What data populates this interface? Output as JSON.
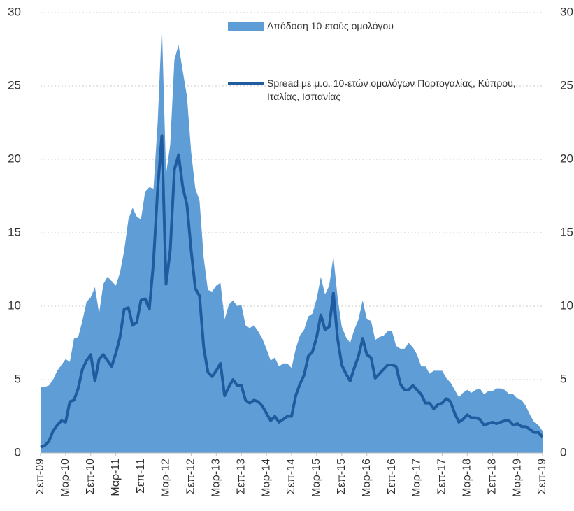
{
  "chart_data": {
    "type": "area-line",
    "categories": [
      "Σεπ-09",
      null,
      null,
      null,
      null,
      null,
      "Μαρ-10",
      null,
      null,
      null,
      null,
      null,
      "Σεπ-10",
      null,
      null,
      null,
      null,
      null,
      "Μαρ-11",
      null,
      null,
      null,
      null,
      null,
      "Σεπ-11",
      null,
      null,
      null,
      null,
      null,
      "Μαρ-12",
      null,
      null,
      null,
      null,
      null,
      "Σεπ-12",
      null,
      null,
      null,
      null,
      null,
      "Μαρ-13",
      null,
      null,
      null,
      null,
      null,
      "Σεπ-13",
      null,
      null,
      null,
      null,
      null,
      "Μαρ-14",
      null,
      null,
      null,
      null,
      null,
      "Σεπ-14",
      null,
      null,
      null,
      null,
      null,
      "Μαρ-15",
      null,
      null,
      null,
      null,
      null,
      "Σεπ-15",
      null,
      null,
      null,
      null,
      null,
      "Μαρ-16",
      null,
      null,
      null,
      null,
      null,
      "Σεπ-16",
      null,
      null,
      null,
      null,
      null,
      "Μαρ-17",
      null,
      null,
      null,
      null,
      null,
      "Σεπ-17",
      null,
      null,
      null,
      null,
      null,
      "Μαρ-18",
      null,
      null,
      null,
      null,
      null,
      "Σεπ-18",
      null,
      null,
      null,
      null,
      null,
      "Μαρ-19",
      null,
      null,
      null,
      null,
      null,
      "Σεπ-19"
    ],
    "series": [
      {
        "name": "Απόδοση 10-ετούς ομολόγου",
        "kind": "area",
        "color": "#5f9dd6",
        "values": [
          4.5,
          4.5,
          4.6,
          5.0,
          5.6,
          6.0,
          6.4,
          6.2,
          7.8,
          7.9,
          9.0,
          10.3,
          10.6,
          11.3,
          9.5,
          11.5,
          12.0,
          11.7,
          11.4,
          12.3,
          13.8,
          15.9,
          16.7,
          16.1,
          15.9,
          17.8,
          18.1,
          18.0,
          22.5,
          29.2,
          19.0,
          21.0,
          26.8,
          27.8,
          26.0,
          24.3,
          20.5,
          18.0,
          17.2,
          13.3,
          11.1,
          11.0,
          11.4,
          11.6,
          9.1,
          10.1,
          10.4,
          10.0,
          10.1,
          8.7,
          8.5,
          8.7,
          8.3,
          7.8,
          7.1,
          6.3,
          6.5,
          5.9,
          6.1,
          6.1,
          5.8,
          7.1,
          8.0,
          8.4,
          9.3,
          9.5,
          10.5,
          12.0,
          10.8,
          11.4,
          13.4,
          10.6,
          8.6,
          7.9,
          7.5,
          8.4,
          9.1,
          10.4,
          9.1,
          9.0,
          7.7,
          7.9,
          8.0,
          8.3,
          8.3,
          7.3,
          7.1,
          7.1,
          7.5,
          7.2,
          6.7,
          5.9,
          5.9,
          5.4,
          5.6,
          5.6,
          5.6,
          5.1,
          4.8,
          4.3,
          3.8,
          4.1,
          4.3,
          4.1,
          4.3,
          4.4,
          4.0,
          4.2,
          4.2,
          4.4,
          4.4,
          4.3,
          4.0,
          4.0,
          3.7,
          3.6,
          3.2,
          2.6,
          2.1,
          1.9,
          1.5
        ]
      },
      {
        "name": "Spread με μ.ο. 10-ετών ομολόγων Πορτογαλίας, Κύπρου, Ιταλίας, Ισπανίας",
        "kind": "line",
        "axis": "y2",
        "color": "#1f5b9f",
        "values": [
          0.4,
          0.5,
          0.8,
          1.5,
          1.9,
          2.2,
          2.1,
          3.5,
          3.6,
          4.4,
          5.7,
          6.3,
          6.7,
          4.9,
          6.4,
          6.7,
          6.3,
          5.9,
          6.8,
          7.9,
          9.8,
          9.9,
          8.7,
          8.9,
          10.4,
          10.5,
          9.8,
          13.0,
          18.0,
          21.6,
          11.5,
          13.8,
          19.3,
          20.3,
          18.1,
          16.9,
          13.8,
          11.2,
          10.7,
          7.2,
          5.5,
          5.2,
          5.6,
          6.1,
          3.9,
          4.5,
          5.0,
          4.6,
          4.6,
          3.6,
          3.4,
          3.6,
          3.5,
          3.2,
          2.7,
          2.2,
          2.5,
          2.1,
          2.3,
          2.5,
          2.5,
          3.9,
          4.7,
          5.3,
          6.6,
          6.9,
          7.9,
          9.4,
          8.4,
          8.6,
          10.9,
          7.8,
          6.0,
          5.4,
          4.9,
          5.8,
          6.6,
          7.8,
          6.7,
          6.5,
          5.1,
          5.4,
          5.7,
          6.0,
          6.0,
          5.9,
          4.7,
          4.3,
          4.3,
          4.6,
          4.3,
          4.0,
          3.4,
          3.4,
          3.0,
          3.3,
          3.4,
          3.7,
          3.5,
          2.7,
          2.1,
          2.3,
          2.6,
          2.4,
          2.4,
          2.3,
          1.9,
          2.0,
          2.1,
          2.0,
          2.1,
          2.2,
          2.2,
          1.9,
          2.0,
          1.8,
          1.8,
          1.6,
          1.4,
          1.4,
          1.1
        ]
      }
    ],
    "ylim": [
      0,
      30
    ],
    "yticks": [
      0,
      5,
      10,
      15,
      20,
      25,
      30
    ],
    "y2lim": [
      0,
      30
    ],
    "y2ticks": [
      0,
      5,
      10,
      15,
      20,
      25,
      30
    ],
    "grid": true,
    "legend": "top"
  }
}
